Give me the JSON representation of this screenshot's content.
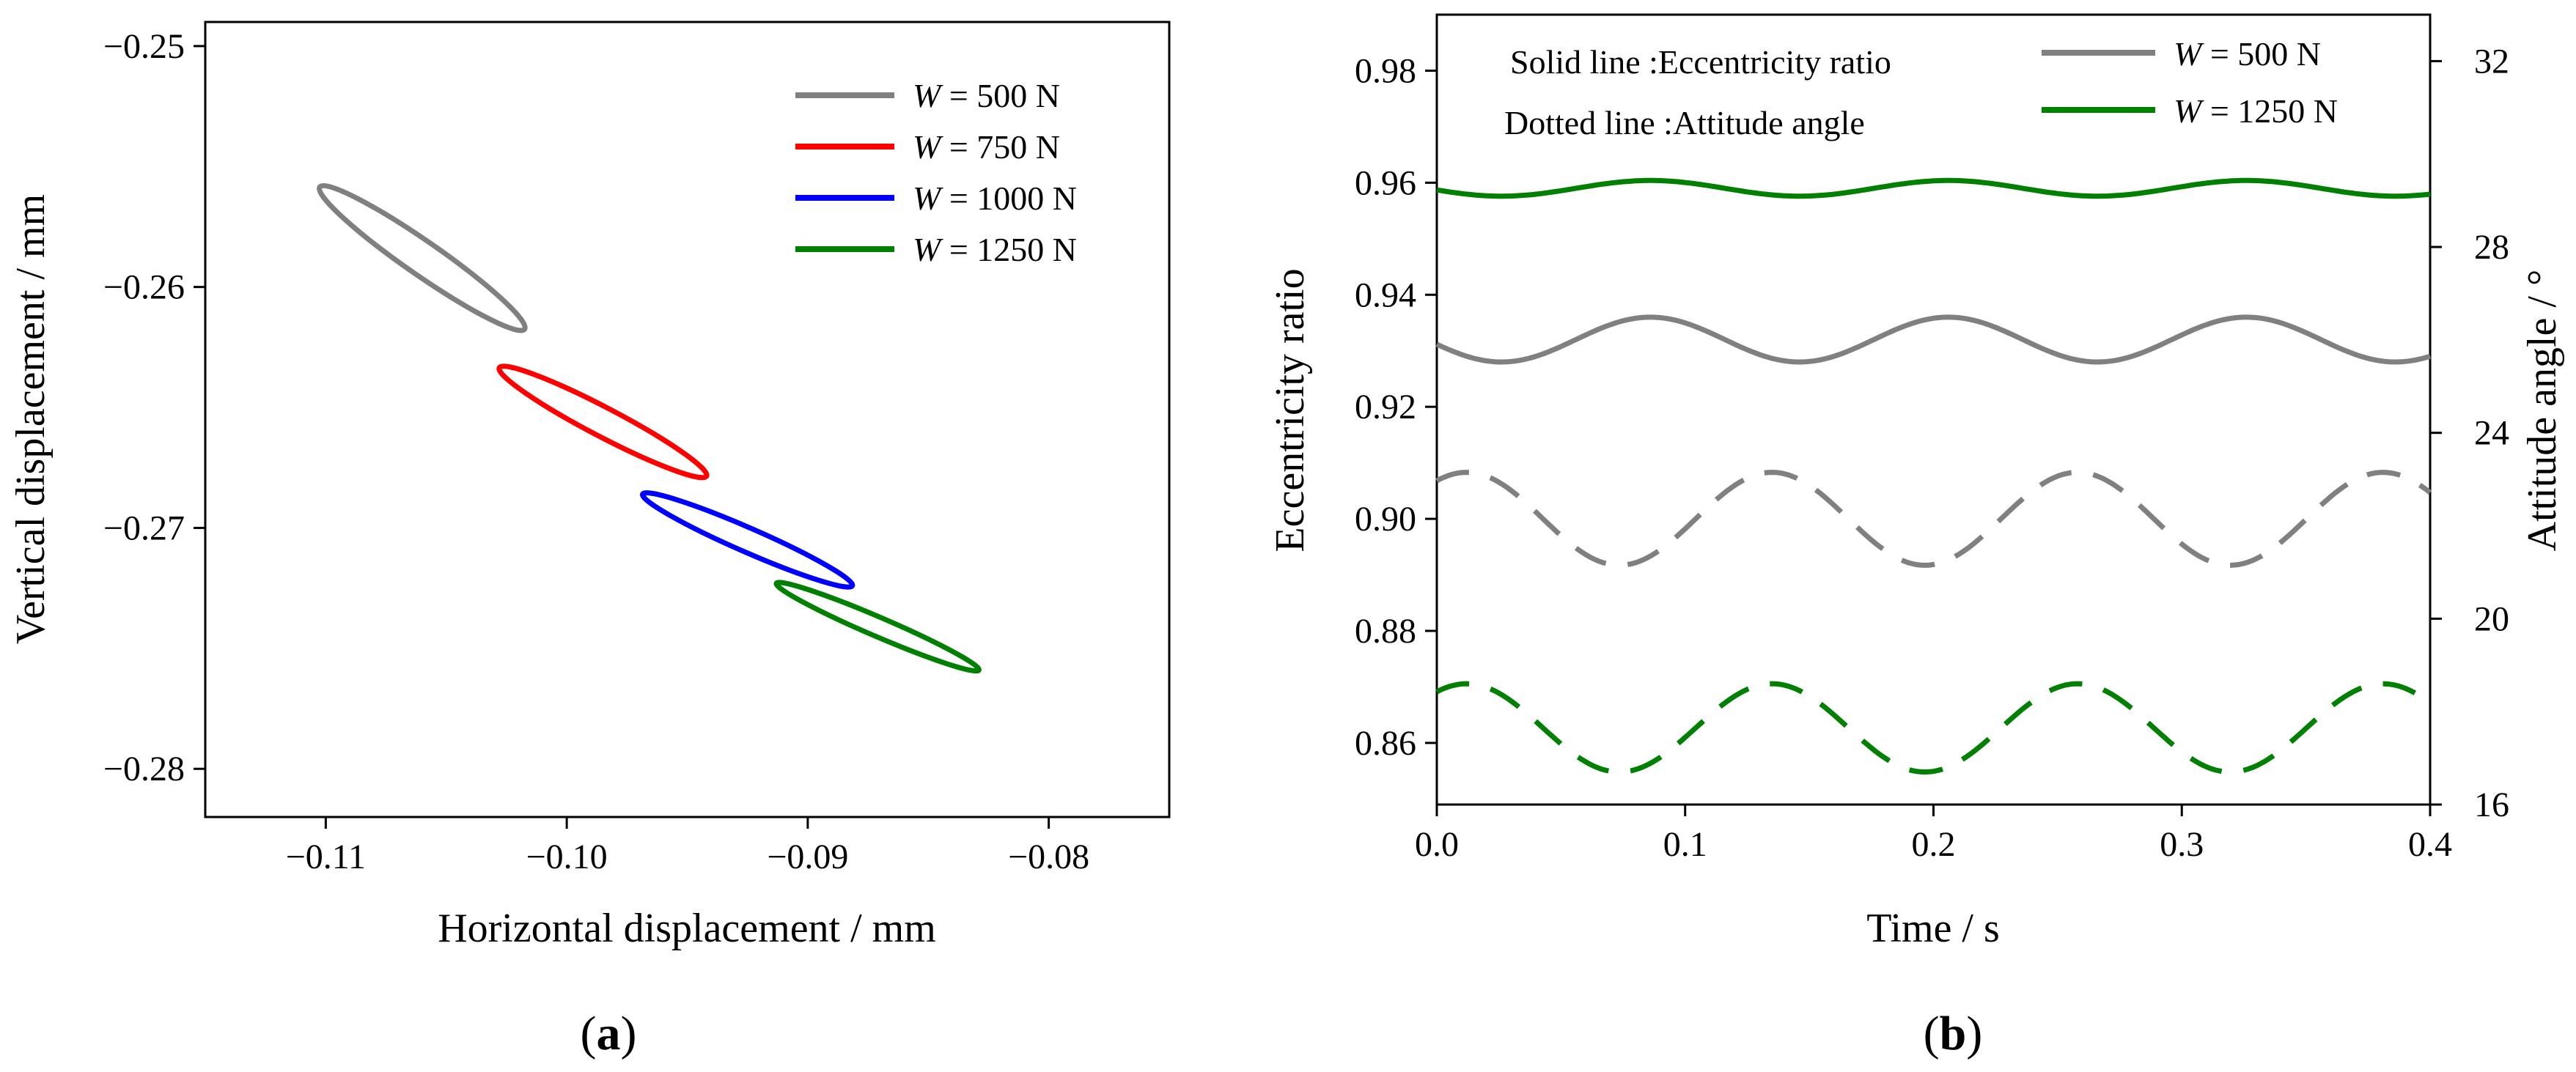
{
  "chart_data": [
    {
      "type": "line",
      "panel": "a",
      "xlabel": "Horizontal displacement / mm",
      "ylabel": "Vertical displacement / mm",
      "xlim": [
        -0.115,
        -0.075
      ],
      "ylim": [
        -0.282,
        -0.249
      ],
      "xticks": [
        -0.11,
        -0.1,
        -0.09,
        -0.08
      ],
      "xtick_labels": [
        "−0.11",
        "−0.10",
        "−0.09",
        "−0.08"
      ],
      "yticks": [
        -0.28,
        -0.27,
        -0.26,
        -0.25
      ],
      "ytick_labels": [
        "−0.28",
        "−0.27",
        "−0.26",
        "−0.25"
      ],
      "legend_location": "top-right",
      "series": [
        {
          "name_prefix": "W",
          "name_suffix": " = 500 N",
          "color": "#808080",
          "center": [
            -0.106,
            -0.2588
          ],
          "endpoint_a": [
            -0.1102,
            -0.2558
          ],
          "endpoint_b": [
            -0.1017,
            -0.2617
          ],
          "minor_half_width": 0.0007
        },
        {
          "name_prefix": "W",
          "name_suffix": " = 750 N",
          "color": "#ff0000",
          "center": [
            -0.0985,
            -0.2656
          ],
          "endpoint_a": [
            -0.1028,
            -0.2633
          ],
          "endpoint_b": [
            -0.0942,
            -0.2678
          ],
          "minor_half_width": 0.0006
        },
        {
          "name_prefix": "W",
          "name_suffix": " = 1000 N",
          "color": "#0000ff",
          "center": [
            -0.0925,
            -0.2705
          ],
          "endpoint_a": [
            -0.0968,
            -0.2686
          ],
          "endpoint_b": [
            -0.0881,
            -0.2724
          ],
          "minor_half_width": 0.0005
        },
        {
          "name_prefix": "W",
          "name_suffix": " = 1250 N",
          "color": "#008000",
          "center": [
            -0.0871,
            -0.2741
          ],
          "endpoint_a": [
            -0.0913,
            -0.2723
          ],
          "endpoint_b": [
            -0.0829,
            -0.2759
          ],
          "minor_half_width": 0.0004
        }
      ],
      "caption": "a"
    },
    {
      "type": "line",
      "panel": "b",
      "xlabel": "Time / s",
      "ylabel": "Eccentricity ratio",
      "y2label": "Attitude angle / °",
      "xlim": [
        0.0,
        0.4
      ],
      "ylim": [
        0.849,
        0.99
      ],
      "y2lim": [
        16,
        33.0
      ],
      "xticks": [
        0.0,
        0.1,
        0.2,
        0.3,
        0.4
      ],
      "xtick_labels": [
        "0.0",
        "0.1",
        "0.2",
        "0.3",
        "0.4"
      ],
      "yticks": [
        0.86,
        0.88,
        0.9,
        0.92,
        0.94,
        0.96,
        0.98
      ],
      "ytick_labels": [
        "0.86",
        "0.88",
        "0.90",
        "0.92",
        "0.94",
        "0.96",
        "0.98"
      ],
      "y2ticks": [
        16,
        20,
        24,
        28,
        32
      ],
      "y2tick_labels": [
        "16",
        "20",
        "24",
        "28",
        "32"
      ],
      "legend_location": "top-right",
      "annotations": [
        "Solid line :Eccentricity ratio",
        "Dotted line :Attitude angle"
      ],
      "series": [
        {
          "name_prefix": "W",
          "name_suffix": " = 500 N",
          "color": "#808080",
          "eccentricity": {
            "mean": 0.932,
            "amplitude": 0.004,
            "period": 0.12,
            "peak_time": 0.086
          },
          "attitude_angle": {
            "mean": 22.15,
            "amplitude": 1.0,
            "period": 0.123,
            "peak_time": 0.012,
            "linestyle": "dashed"
          }
        },
        {
          "name_prefix": "W",
          "name_suffix": " = 1250 N",
          "color": "#008000",
          "eccentricity": {
            "mean": 0.959,
            "amplitude": 0.0014,
            "period": 0.12,
            "peak_time": 0.086
          },
          "attitude_angle": {
            "mean": 17.65,
            "amplitude": 0.95,
            "period": 0.123,
            "peak_time": 0.012,
            "linestyle": "dashed"
          }
        }
      ],
      "caption": "b"
    }
  ]
}
